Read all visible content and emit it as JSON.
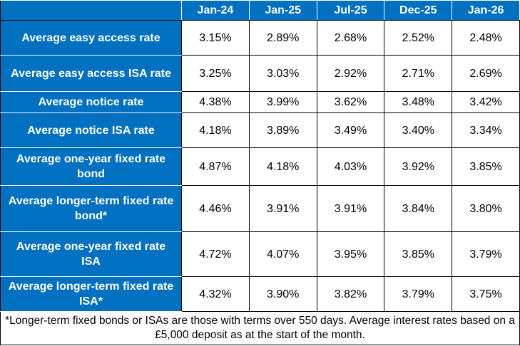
{
  "table": {
    "columns": [
      "Jan-24",
      "Jan-25",
      "Jul-25",
      "Dec-25",
      "Jan-26"
    ],
    "rows": [
      {
        "label": "Average easy access rate",
        "values": [
          "3.15%",
          "2.89%",
          "2.68%",
          "2.52%",
          "2.48%"
        ]
      },
      {
        "label": "Average easy access ISA rate",
        "values": [
          "3.25%",
          "3.03%",
          "2.92%",
          "2.71%",
          "2.69%"
        ]
      },
      {
        "label": "Average notice rate",
        "values": [
          "4.38%",
          "3.99%",
          "3.62%",
          "3.48%",
          "3.42%"
        ]
      },
      {
        "label": "Average notice ISA rate",
        "values": [
          "4.18%",
          "3.89%",
          "3.49%",
          "3.40%",
          "3.34%"
        ]
      },
      {
        "label": "Average one-year fixed rate bond",
        "values": [
          "4.87%",
          "4.18%",
          "4.03%",
          "3.92%",
          "3.85%"
        ]
      },
      {
        "label": "Average longer-term fixed rate bond*",
        "values": [
          "4.46%",
          "3.91%",
          "3.91%",
          "3.84%",
          "3.80%"
        ]
      },
      {
        "label": "Average one-year fixed rate ISA",
        "values": [
          "4.72%",
          "4.07%",
          "3.95%",
          "3.85%",
          "3.79%"
        ]
      },
      {
        "label": "Average longer-term fixed rate ISA*",
        "values": [
          "4.32%",
          "3.90%",
          "3.82%",
          "3.79%",
          "3.75%"
        ]
      }
    ],
    "footnote": "*Longer-term fixed bonds or ISAs are those with terms over 550 days. Average interest rates based on a £5,000 deposit as at the start of the month."
  }
}
